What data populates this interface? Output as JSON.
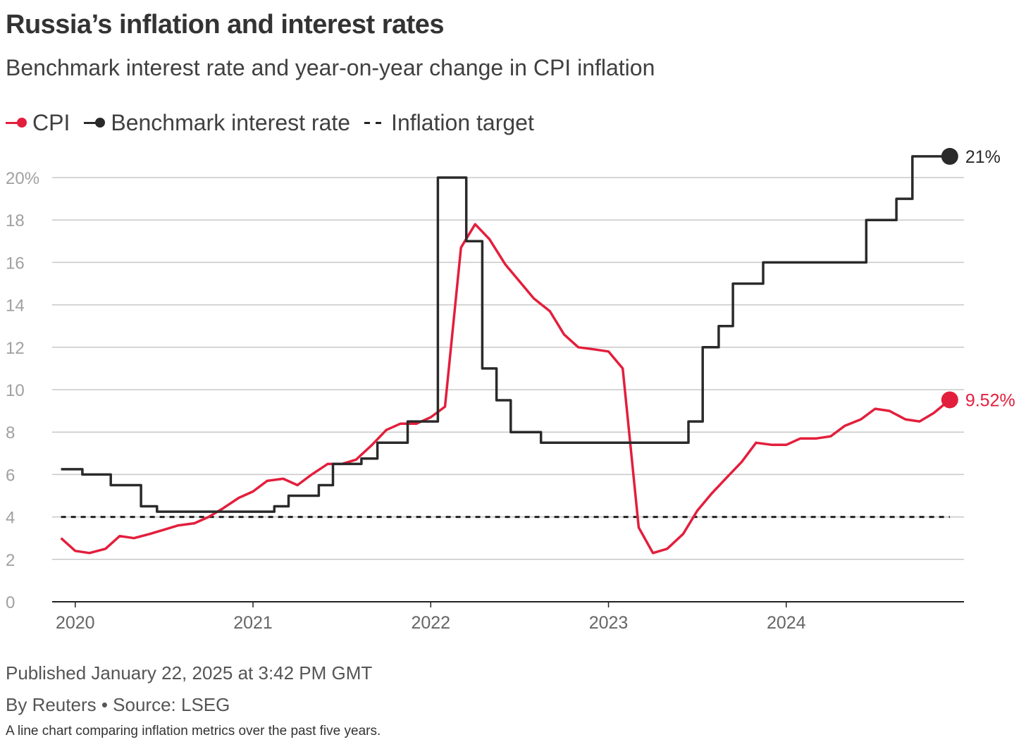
{
  "header": {
    "title": "Russia’s inflation and interest rates",
    "subtitle": "Benchmark interest rate and year-on-year change in CPI inflation"
  },
  "legend": [
    {
      "label": "CPI",
      "kind": "line-dot",
      "color": "#e31e3c"
    },
    {
      "label": "Benchmark interest rate",
      "kind": "line-dot",
      "color": "#2a2a2a"
    },
    {
      "label": "Inflation target",
      "kind": "dashed",
      "color": "#222222"
    }
  ],
  "footer": {
    "published": "Published January 22, 2025 at 3:42 PM GMT",
    "source": "By Reuters • Source: LSEG",
    "description": "A line chart comparing inflation metrics over the past five years."
  },
  "chart_data": {
    "type": "line",
    "title": "Russia’s inflation and interest rates",
    "subtitle": "Benchmark interest rate and year-on-year change in CPI inflation",
    "xlabel": "",
    "ylabel": "",
    "xlim": [
      2019.87,
      2025.0
    ],
    "ylim": [
      0,
      20
    ],
    "grid": true,
    "legend_position": "top-left",
    "x_ticks": [
      {
        "value": 2020.0,
        "label": "2020"
      },
      {
        "value": 2021.0,
        "label": "2021"
      },
      {
        "value": 2022.0,
        "label": "2022"
      },
      {
        "value": 2023.0,
        "label": "2023"
      },
      {
        "value": 2024.0,
        "label": "2024"
      }
    ],
    "y_ticks": [
      {
        "value": 0,
        "label": "0"
      },
      {
        "value": 2,
        "label": "2"
      },
      {
        "value": 4,
        "label": "4"
      },
      {
        "value": 6,
        "label": "6"
      },
      {
        "value": 8,
        "label": "8"
      },
      {
        "value": 10,
        "label": "10"
      },
      {
        "value": 12,
        "label": "12"
      },
      {
        "value": 14,
        "label": "14"
      },
      {
        "value": 16,
        "label": "16"
      },
      {
        "value": 18,
        "label": "18"
      },
      {
        "value": 20,
        "label": "20%"
      }
    ],
    "series": [
      {
        "name": "CPI",
        "color": "#e31e3c",
        "line_shape": "linear",
        "end_label": "9.52%",
        "points": [
          [
            2019.92,
            3.0
          ],
          [
            2020.0,
            2.4
          ],
          [
            2020.08,
            2.3
          ],
          [
            2020.17,
            2.5
          ],
          [
            2020.25,
            3.1
          ],
          [
            2020.33,
            3.0
          ],
          [
            2020.42,
            3.2
          ],
          [
            2020.5,
            3.4
          ],
          [
            2020.58,
            3.6
          ],
          [
            2020.67,
            3.7
          ],
          [
            2020.75,
            4.0
          ],
          [
            2020.83,
            4.4
          ],
          [
            2020.92,
            4.9
          ],
          [
            2021.0,
            5.2
          ],
          [
            2021.08,
            5.7
          ],
          [
            2021.17,
            5.8
          ],
          [
            2021.25,
            5.5
          ],
          [
            2021.33,
            6.0
          ],
          [
            2021.42,
            6.5
          ],
          [
            2021.5,
            6.5
          ],
          [
            2021.58,
            6.7
          ],
          [
            2021.67,
            7.4
          ],
          [
            2021.75,
            8.1
          ],
          [
            2021.83,
            8.4
          ],
          [
            2021.92,
            8.4
          ],
          [
            2022.0,
            8.7
          ],
          [
            2022.08,
            9.2
          ],
          [
            2022.17,
            16.7
          ],
          [
            2022.25,
            17.8
          ],
          [
            2022.33,
            17.1
          ],
          [
            2022.42,
            15.9
          ],
          [
            2022.5,
            15.1
          ],
          [
            2022.58,
            14.3
          ],
          [
            2022.67,
            13.7
          ],
          [
            2022.75,
            12.6
          ],
          [
            2022.83,
            12.0
          ],
          [
            2022.92,
            11.9
          ],
          [
            2023.0,
            11.8
          ],
          [
            2023.08,
            11.0
          ],
          [
            2023.17,
            3.5
          ],
          [
            2023.25,
            2.3
          ],
          [
            2023.33,
            2.5
          ],
          [
            2023.42,
            3.2
          ],
          [
            2023.5,
            4.3
          ],
          [
            2023.58,
            5.1
          ],
          [
            2023.67,
            5.9
          ],
          [
            2023.75,
            6.6
          ],
          [
            2023.83,
            7.5
          ],
          [
            2023.92,
            7.4
          ],
          [
            2024.0,
            7.4
          ],
          [
            2024.08,
            7.7
          ],
          [
            2024.17,
            7.7
          ],
          [
            2024.25,
            7.8
          ],
          [
            2024.33,
            8.3
          ],
          [
            2024.42,
            8.6
          ],
          [
            2024.5,
            9.1
          ],
          [
            2024.58,
            9.0
          ],
          [
            2024.67,
            8.6
          ],
          [
            2024.75,
            8.5
          ],
          [
            2024.83,
            8.9
          ],
          [
            2024.92,
            9.52
          ]
        ]
      },
      {
        "name": "Benchmark interest rate",
        "color": "#2a2a2a",
        "line_shape": "step",
        "end_label": "21%",
        "points": [
          [
            2019.92,
            6.25
          ],
          [
            2020.04,
            6.0
          ],
          [
            2020.2,
            5.5
          ],
          [
            2020.37,
            4.5
          ],
          [
            2020.46,
            4.25
          ],
          [
            2021.12,
            4.5
          ],
          [
            2021.2,
            5.0
          ],
          [
            2021.37,
            5.5
          ],
          [
            2021.45,
            6.5
          ],
          [
            2021.61,
            6.75
          ],
          [
            2021.7,
            7.5
          ],
          [
            2021.87,
            8.5
          ],
          [
            2022.04,
            20.0
          ],
          [
            2022.2,
            17.0
          ],
          [
            2022.29,
            11.0
          ],
          [
            2022.37,
            9.5
          ],
          [
            2022.45,
            8.0
          ],
          [
            2022.62,
            7.5
          ],
          [
            2023.45,
            8.5
          ],
          [
            2023.53,
            12.0
          ],
          [
            2023.62,
            13.0
          ],
          [
            2023.7,
            15.0
          ],
          [
            2023.87,
            16.0
          ],
          [
            2024.45,
            18.0
          ],
          [
            2024.62,
            19.0
          ],
          [
            2024.71,
            21.0
          ],
          [
            2024.92,
            21.0
          ]
        ]
      },
      {
        "name": "Inflation target",
        "color": "#222222",
        "line_shape": "dashed",
        "points": [
          [
            2019.92,
            4.0
          ],
          [
            2024.92,
            4.0
          ]
        ]
      }
    ]
  }
}
